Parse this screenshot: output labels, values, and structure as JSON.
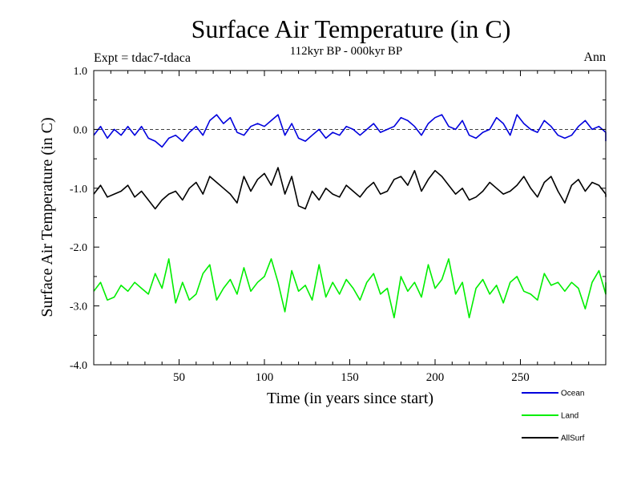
{
  "chart_data": {
    "type": "line",
    "title": "Surface Air Temperature (in C)",
    "subtitle": "112kyr BP - 000kyr BP",
    "top_left_label": "Expt = tdac7-tdaca",
    "top_right_label": "Ann",
    "xlabel": "Time (in years since start)",
    "ylabel": "Surface Air Temperature (in C)",
    "xlim": [
      0,
      300
    ],
    "ylim": [
      -4.0,
      1.0
    ],
    "x_ticks": [
      50,
      100,
      150,
      200,
      250
    ],
    "x_tick_labels": [
      "50",
      "100",
      "150",
      "200",
      "250"
    ],
    "y_ticks": [
      1.0,
      0.0,
      -1.0,
      -2.0,
      -3.0,
      -4.0
    ],
    "y_tick_labels": [
      "1.0",
      "0.0",
      "-1.0",
      "-2.0",
      "-3.0",
      "-4.0"
    ],
    "reference_line": 0.0,
    "series": [
      {
        "name": "Ocean",
        "color": "#0000dd",
        "x_start": 0,
        "x_step": 4,
        "values": [
          -0.1,
          0.05,
          -0.15,
          0.0,
          -0.1,
          0.05,
          -0.1,
          0.05,
          -0.15,
          -0.2,
          -0.3,
          -0.15,
          -0.1,
          -0.2,
          -0.05,
          0.05,
          -0.1,
          0.15,
          0.25,
          0.1,
          0.2,
          -0.05,
          -0.1,
          0.05,
          0.1,
          0.05,
          0.15,
          0.25,
          -0.1,
          0.1,
          -0.15,
          -0.2,
          -0.1,
          0.0,
          -0.15,
          -0.05,
          -0.1,
          0.05,
          0.0,
          -0.1,
          0.0,
          0.1,
          -0.05,
          0.0,
          0.05,
          0.2,
          0.15,
          0.05,
          -0.1,
          0.1,
          0.2,
          0.25,
          0.05,
          0.0,
          0.15,
          -0.1,
          -0.15,
          -0.05,
          0.0,
          0.2,
          0.1,
          -0.1,
          0.25,
          0.1,
          0.0,
          -0.05,
          0.15,
          0.05,
          -0.1,
          -0.15,
          -0.1,
          0.05,
          0.15,
          0.0,
          0.05,
          -0.05,
          -0.2
        ]
      },
      {
        "name": "Land",
        "color": "#00ee00",
        "x_start": 0,
        "x_step": 4,
        "values": [
          -2.75,
          -2.6,
          -2.9,
          -2.85,
          -2.65,
          -2.75,
          -2.6,
          -2.7,
          -2.8,
          -2.45,
          -2.7,
          -2.2,
          -2.95,
          -2.6,
          -2.9,
          -2.8,
          -2.45,
          -2.3,
          -2.9,
          -2.7,
          -2.55,
          -2.8,
          -2.35,
          -2.75,
          -2.6,
          -2.5,
          -2.2,
          -2.6,
          -3.1,
          -2.4,
          -2.75,
          -2.65,
          -2.9,
          -2.3,
          -2.85,
          -2.6,
          -2.8,
          -2.55,
          -2.7,
          -2.9,
          -2.6,
          -2.45,
          -2.8,
          -2.7,
          -3.2,
          -2.5,
          -2.75,
          -2.6,
          -2.85,
          -2.3,
          -2.7,
          -2.55,
          -2.2,
          -2.8,
          -2.6,
          -3.2,
          -2.7,
          -2.55,
          -2.8,
          -2.65,
          -2.95,
          -2.6,
          -2.5,
          -2.75,
          -2.8,
          -2.9,
          -2.45,
          -2.65,
          -2.6,
          -2.75,
          -2.6,
          -2.7,
          -3.05,
          -2.6,
          -2.4,
          -2.8,
          -2.6
        ]
      },
      {
        "name": "AllSurf",
        "color": "#000000",
        "x_start": 0,
        "x_step": 4,
        "values": [
          -1.1,
          -0.95,
          -1.15,
          -1.1,
          -1.05,
          -0.95,
          -1.15,
          -1.05,
          -1.2,
          -1.35,
          -1.2,
          -1.1,
          -1.05,
          -1.2,
          -1.0,
          -0.9,
          -1.1,
          -0.8,
          -0.9,
          -1.0,
          -1.1,
          -1.25,
          -0.8,
          -1.05,
          -0.85,
          -0.75,
          -0.95,
          -0.65,
          -1.1,
          -0.8,
          -1.3,
          -1.35,
          -1.05,
          -1.2,
          -1.0,
          -1.1,
          -1.15,
          -0.95,
          -1.05,
          -1.15,
          -1.0,
          -0.9,
          -1.1,
          -1.05,
          -0.85,
          -0.8,
          -0.95,
          -0.7,
          -1.05,
          -0.85,
          -0.7,
          -0.8,
          -0.95,
          -1.1,
          -1.0,
          -1.2,
          -1.15,
          -1.05,
          -0.9,
          -1.0,
          -1.1,
          -1.05,
          -0.95,
          -0.8,
          -1.0,
          -1.15,
          -0.9,
          -0.8,
          -1.05,
          -1.25,
          -0.95,
          -0.85,
          -1.05,
          -0.9,
          -0.95,
          -1.1,
          -1.15
        ]
      }
    ]
  }
}
